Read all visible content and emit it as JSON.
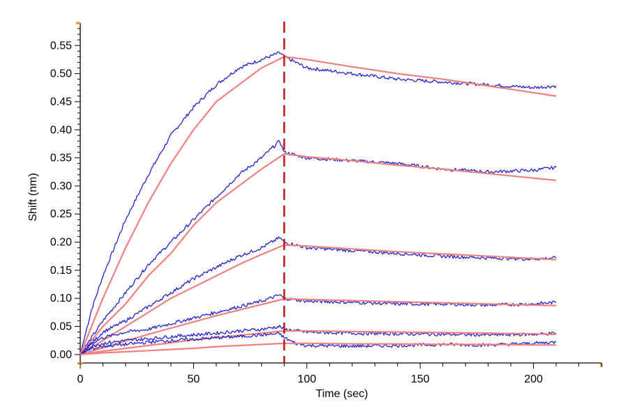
{
  "chart_data": {
    "type": "line",
    "title": "",
    "xlabel": "Time (sec)",
    "ylabel": "Shift (nm)",
    "xlim": [
      0,
      230
    ],
    "ylim": [
      -0.015,
      0.59
    ],
    "x_ticks": [
      0,
      50,
      100,
      150,
      200
    ],
    "x_tick_labels": [
      "0",
      "50",
      "100",
      "150",
      "200"
    ],
    "y_ticks": [
      0.0,
      0.05,
      0.1,
      0.15,
      0.2,
      0.25,
      0.3,
      0.35,
      0.4,
      0.45,
      0.5,
      0.55
    ],
    "y_tick_labels": [
      "0.00",
      "0.05",
      "0.10",
      "0.15",
      "0.20",
      "0.25",
      "0.30",
      "0.35",
      "0.40",
      "0.45",
      "0.50",
      "0.55"
    ],
    "grid": false,
    "legend": "none",
    "association_dissociation_boundary": 90,
    "colors": {
      "data": "#2222cc",
      "fit": "#f08080",
      "boundary": "#cc1111",
      "axis": "#000000",
      "axis_end_marker": "#e8900c"
    },
    "series": [
      {
        "role": "data",
        "x": [
          0,
          5,
          10,
          20,
          30,
          40,
          50,
          60,
          70,
          80,
          88,
          90,
          100,
          120,
          140,
          160,
          180,
          200,
          210
        ],
        "y": [
          0.0,
          0.08,
          0.14,
          0.24,
          0.32,
          0.39,
          0.44,
          0.48,
          0.51,
          0.525,
          0.537,
          0.53,
          0.51,
          0.5,
          0.49,
          0.485,
          0.48,
          0.475,
          0.478
        ]
      },
      {
        "role": "fit",
        "x": [
          0,
          5,
          10,
          20,
          30,
          40,
          50,
          60,
          70,
          80,
          90,
          100,
          120,
          140,
          160,
          180,
          200,
          210
        ],
        "y": [
          0.0,
          0.05,
          0.1,
          0.19,
          0.27,
          0.34,
          0.4,
          0.45,
          0.48,
          0.51,
          0.53,
          0.525,
          0.512,
          0.5,
          0.49,
          0.478,
          0.466,
          0.46
        ]
      },
      {
        "role": "data",
        "x": [
          0,
          5,
          10,
          20,
          30,
          40,
          50,
          60,
          70,
          80,
          88,
          90,
          100,
          120,
          140,
          160,
          180,
          200,
          210
        ],
        "y": [
          0.0,
          0.03,
          0.06,
          0.11,
          0.16,
          0.2,
          0.24,
          0.28,
          0.32,
          0.35,
          0.38,
          0.36,
          0.35,
          0.345,
          0.34,
          0.33,
          0.325,
          0.328,
          0.333
        ]
      },
      {
        "role": "fit",
        "x": [
          0,
          10,
          20,
          30,
          40,
          50,
          60,
          70,
          80,
          90,
          100,
          120,
          140,
          160,
          180,
          200,
          210
        ],
        "y": [
          0.0,
          0.05,
          0.09,
          0.14,
          0.18,
          0.23,
          0.27,
          0.3,
          0.33,
          0.357,
          0.352,
          0.345,
          0.337,
          0.33,
          0.322,
          0.314,
          0.31
        ]
      },
      {
        "role": "data",
        "x": [
          0,
          5,
          10,
          20,
          30,
          40,
          50,
          60,
          70,
          80,
          88,
          90,
          100,
          120,
          140,
          160,
          180,
          200,
          210
        ],
        "y": [
          0.0,
          0.02,
          0.04,
          0.06,
          0.085,
          0.11,
          0.135,
          0.155,
          0.175,
          0.19,
          0.208,
          0.2,
          0.19,
          0.185,
          0.18,
          0.175,
          0.172,
          0.17,
          0.172
        ]
      },
      {
        "role": "fit",
        "x": [
          0,
          10,
          20,
          30,
          40,
          50,
          60,
          70,
          80,
          90,
          100,
          120,
          140,
          160,
          180,
          200,
          210
        ],
        "y": [
          0.0,
          0.025,
          0.05,
          0.075,
          0.1,
          0.12,
          0.14,
          0.16,
          0.178,
          0.195,
          0.193,
          0.188,
          0.183,
          0.179,
          0.175,
          0.171,
          0.169
        ]
      },
      {
        "role": "data",
        "x": [
          0,
          5,
          10,
          20,
          30,
          40,
          50,
          60,
          70,
          80,
          88,
          90,
          100,
          120,
          140,
          160,
          180,
          200,
          210
        ],
        "y": [
          0.0,
          0.02,
          0.03,
          0.04,
          0.045,
          0.055,
          0.065,
          0.075,
          0.085,
          0.095,
          0.106,
          0.1,
          0.095,
          0.093,
          0.09,
          0.09,
          0.088,
          0.09,
          0.093
        ]
      },
      {
        "role": "fit",
        "x": [
          0,
          10,
          20,
          30,
          40,
          50,
          60,
          70,
          80,
          90,
          100,
          120,
          140,
          160,
          180,
          200,
          210
        ],
        "y": [
          0.0,
          0.012,
          0.024,
          0.036,
          0.047,
          0.058,
          0.069,
          0.079,
          0.089,
          0.099,
          0.098,
          0.096,
          0.094,
          0.092,
          0.09,
          0.088,
          0.087
        ]
      },
      {
        "role": "data",
        "x": [
          0,
          5,
          10,
          20,
          30,
          40,
          50,
          60,
          70,
          80,
          88,
          90,
          100,
          120,
          140,
          160,
          180,
          200,
          210
        ],
        "y": [
          0.0,
          0.015,
          0.02,
          0.025,
          0.028,
          0.032,
          0.035,
          0.038,
          0.042,
          0.045,
          0.05,
          0.045,
          0.04,
          0.038,
          0.037,
          0.036,
          0.035,
          0.036,
          0.038
        ]
      },
      {
        "role": "fit",
        "x": [
          0,
          10,
          20,
          30,
          40,
          50,
          60,
          70,
          80,
          90,
          100,
          120,
          140,
          160,
          180,
          200,
          210
        ],
        "y": [
          0.0,
          0.006,
          0.011,
          0.016,
          0.021,
          0.026,
          0.03,
          0.034,
          0.038,
          0.042,
          0.042,
          0.041,
          0.04,
          0.039,
          0.038,
          0.037,
          0.036
        ]
      },
      {
        "role": "data",
        "x": [
          0,
          5,
          10,
          20,
          30,
          40,
          50,
          60,
          70,
          80,
          88,
          90,
          95,
          100,
          120,
          140,
          160,
          180,
          200,
          210
        ],
        "y": [
          0.0,
          0.01,
          0.015,
          0.018,
          0.022,
          0.025,
          0.027,
          0.03,
          0.032,
          0.035,
          0.037,
          0.03,
          0.02,
          0.016,
          0.015,
          0.016,
          0.018,
          0.017,
          0.02,
          0.022
        ]
      },
      {
        "role": "fit",
        "x": [
          0,
          10,
          20,
          30,
          40,
          50,
          60,
          70,
          80,
          90,
          100,
          120,
          140,
          160,
          180,
          200,
          210
        ],
        "y": [
          0.0,
          0.003,
          0.005,
          0.007,
          0.009,
          0.011,
          0.014,
          0.016,
          0.018,
          0.02,
          0.02,
          0.019,
          0.019,
          0.018,
          0.018,
          0.017,
          0.017
        ]
      }
    ]
  }
}
